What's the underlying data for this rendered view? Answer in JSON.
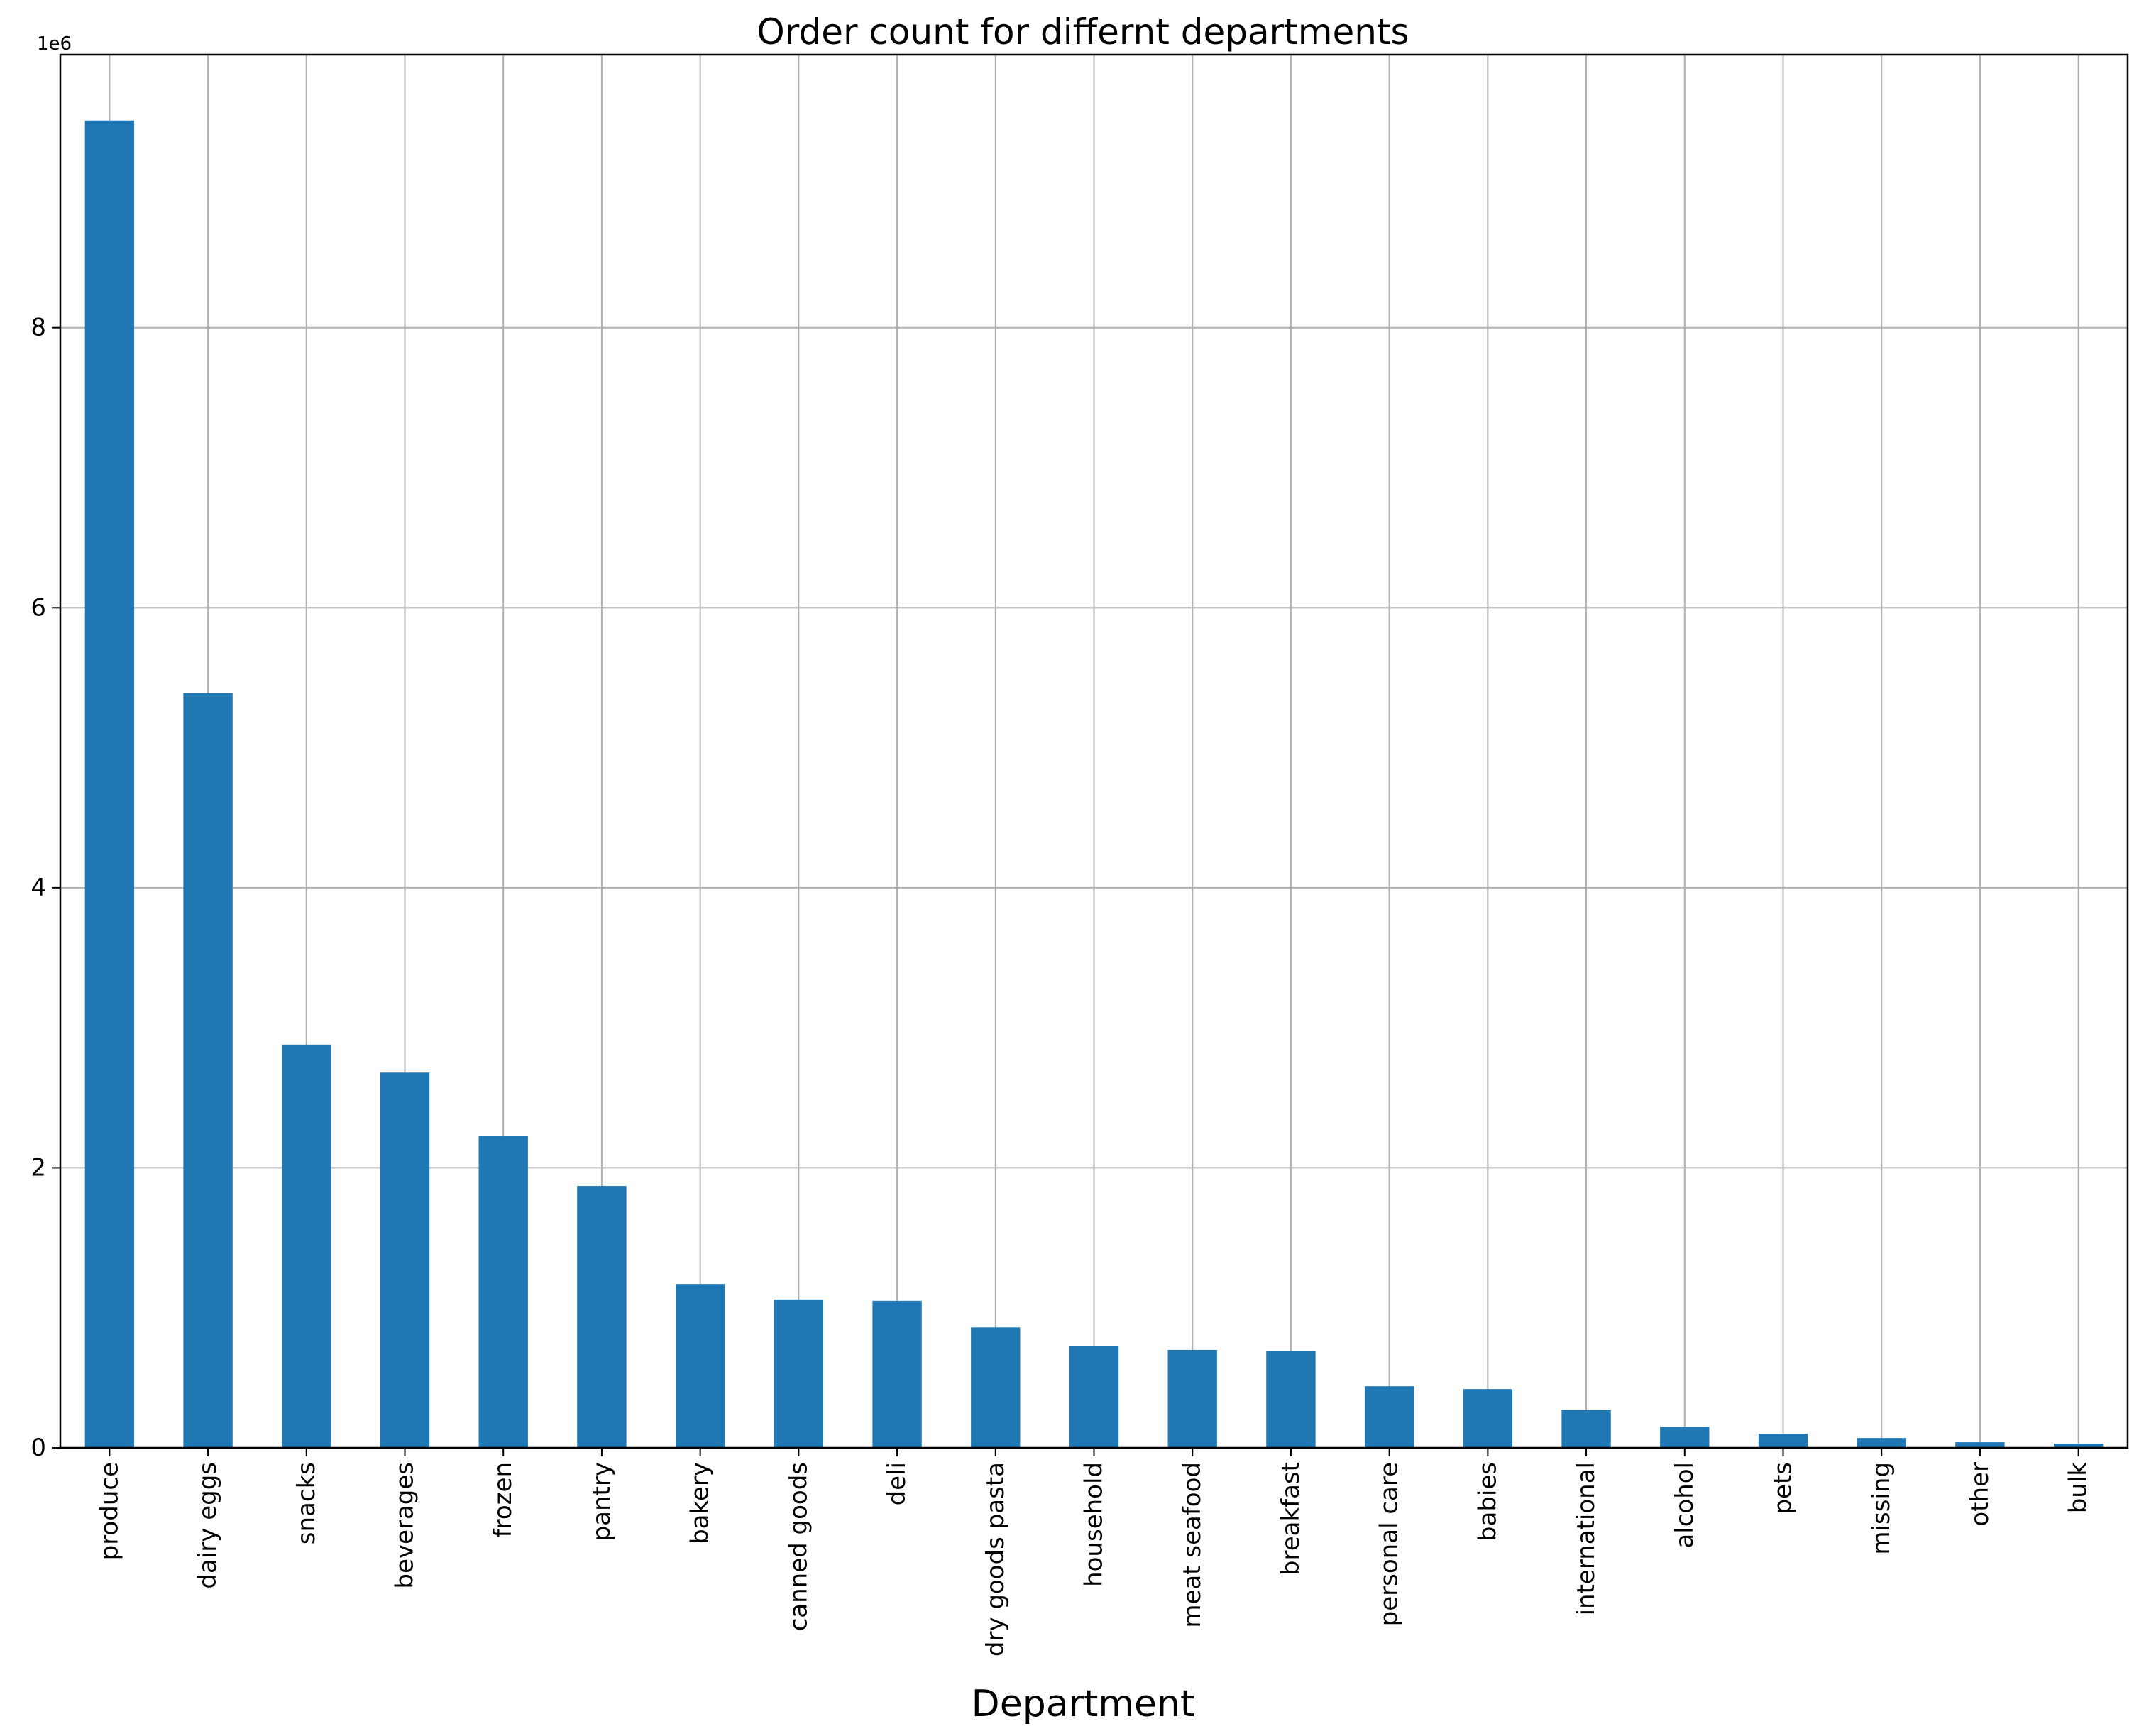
{
  "chart_data": {
    "type": "bar",
    "title": "Order count for differnt departments",
    "xlabel": "Department",
    "ylabel": "",
    "y_offset_label": "1e6",
    "categories": [
      "produce",
      "dairy eggs",
      "snacks",
      "beverages",
      "frozen",
      "pantry",
      "bakery",
      "canned goods",
      "deli",
      "dry goods pasta",
      "household",
      "meat seafood",
      "breakfast",
      "personal care",
      "babies",
      "international",
      "alcohol",
      "pets",
      "missing",
      "other",
      "bulk"
    ],
    "values": [
      9480000,
      5390000,
      2880000,
      2680000,
      2230000,
      1870000,
      1170000,
      1060000,
      1050000,
      860000,
      730000,
      700000,
      690000,
      440000,
      420000,
      270000,
      150000,
      100000,
      70000,
      40000,
      30000
    ],
    "ylim": [
      0,
      9950000
    ],
    "yticks": [
      0,
      2,
      4,
      6,
      8
    ],
    "ytick_scale": 1000000,
    "grid": true,
    "bar_color": "#1f77b4"
  }
}
